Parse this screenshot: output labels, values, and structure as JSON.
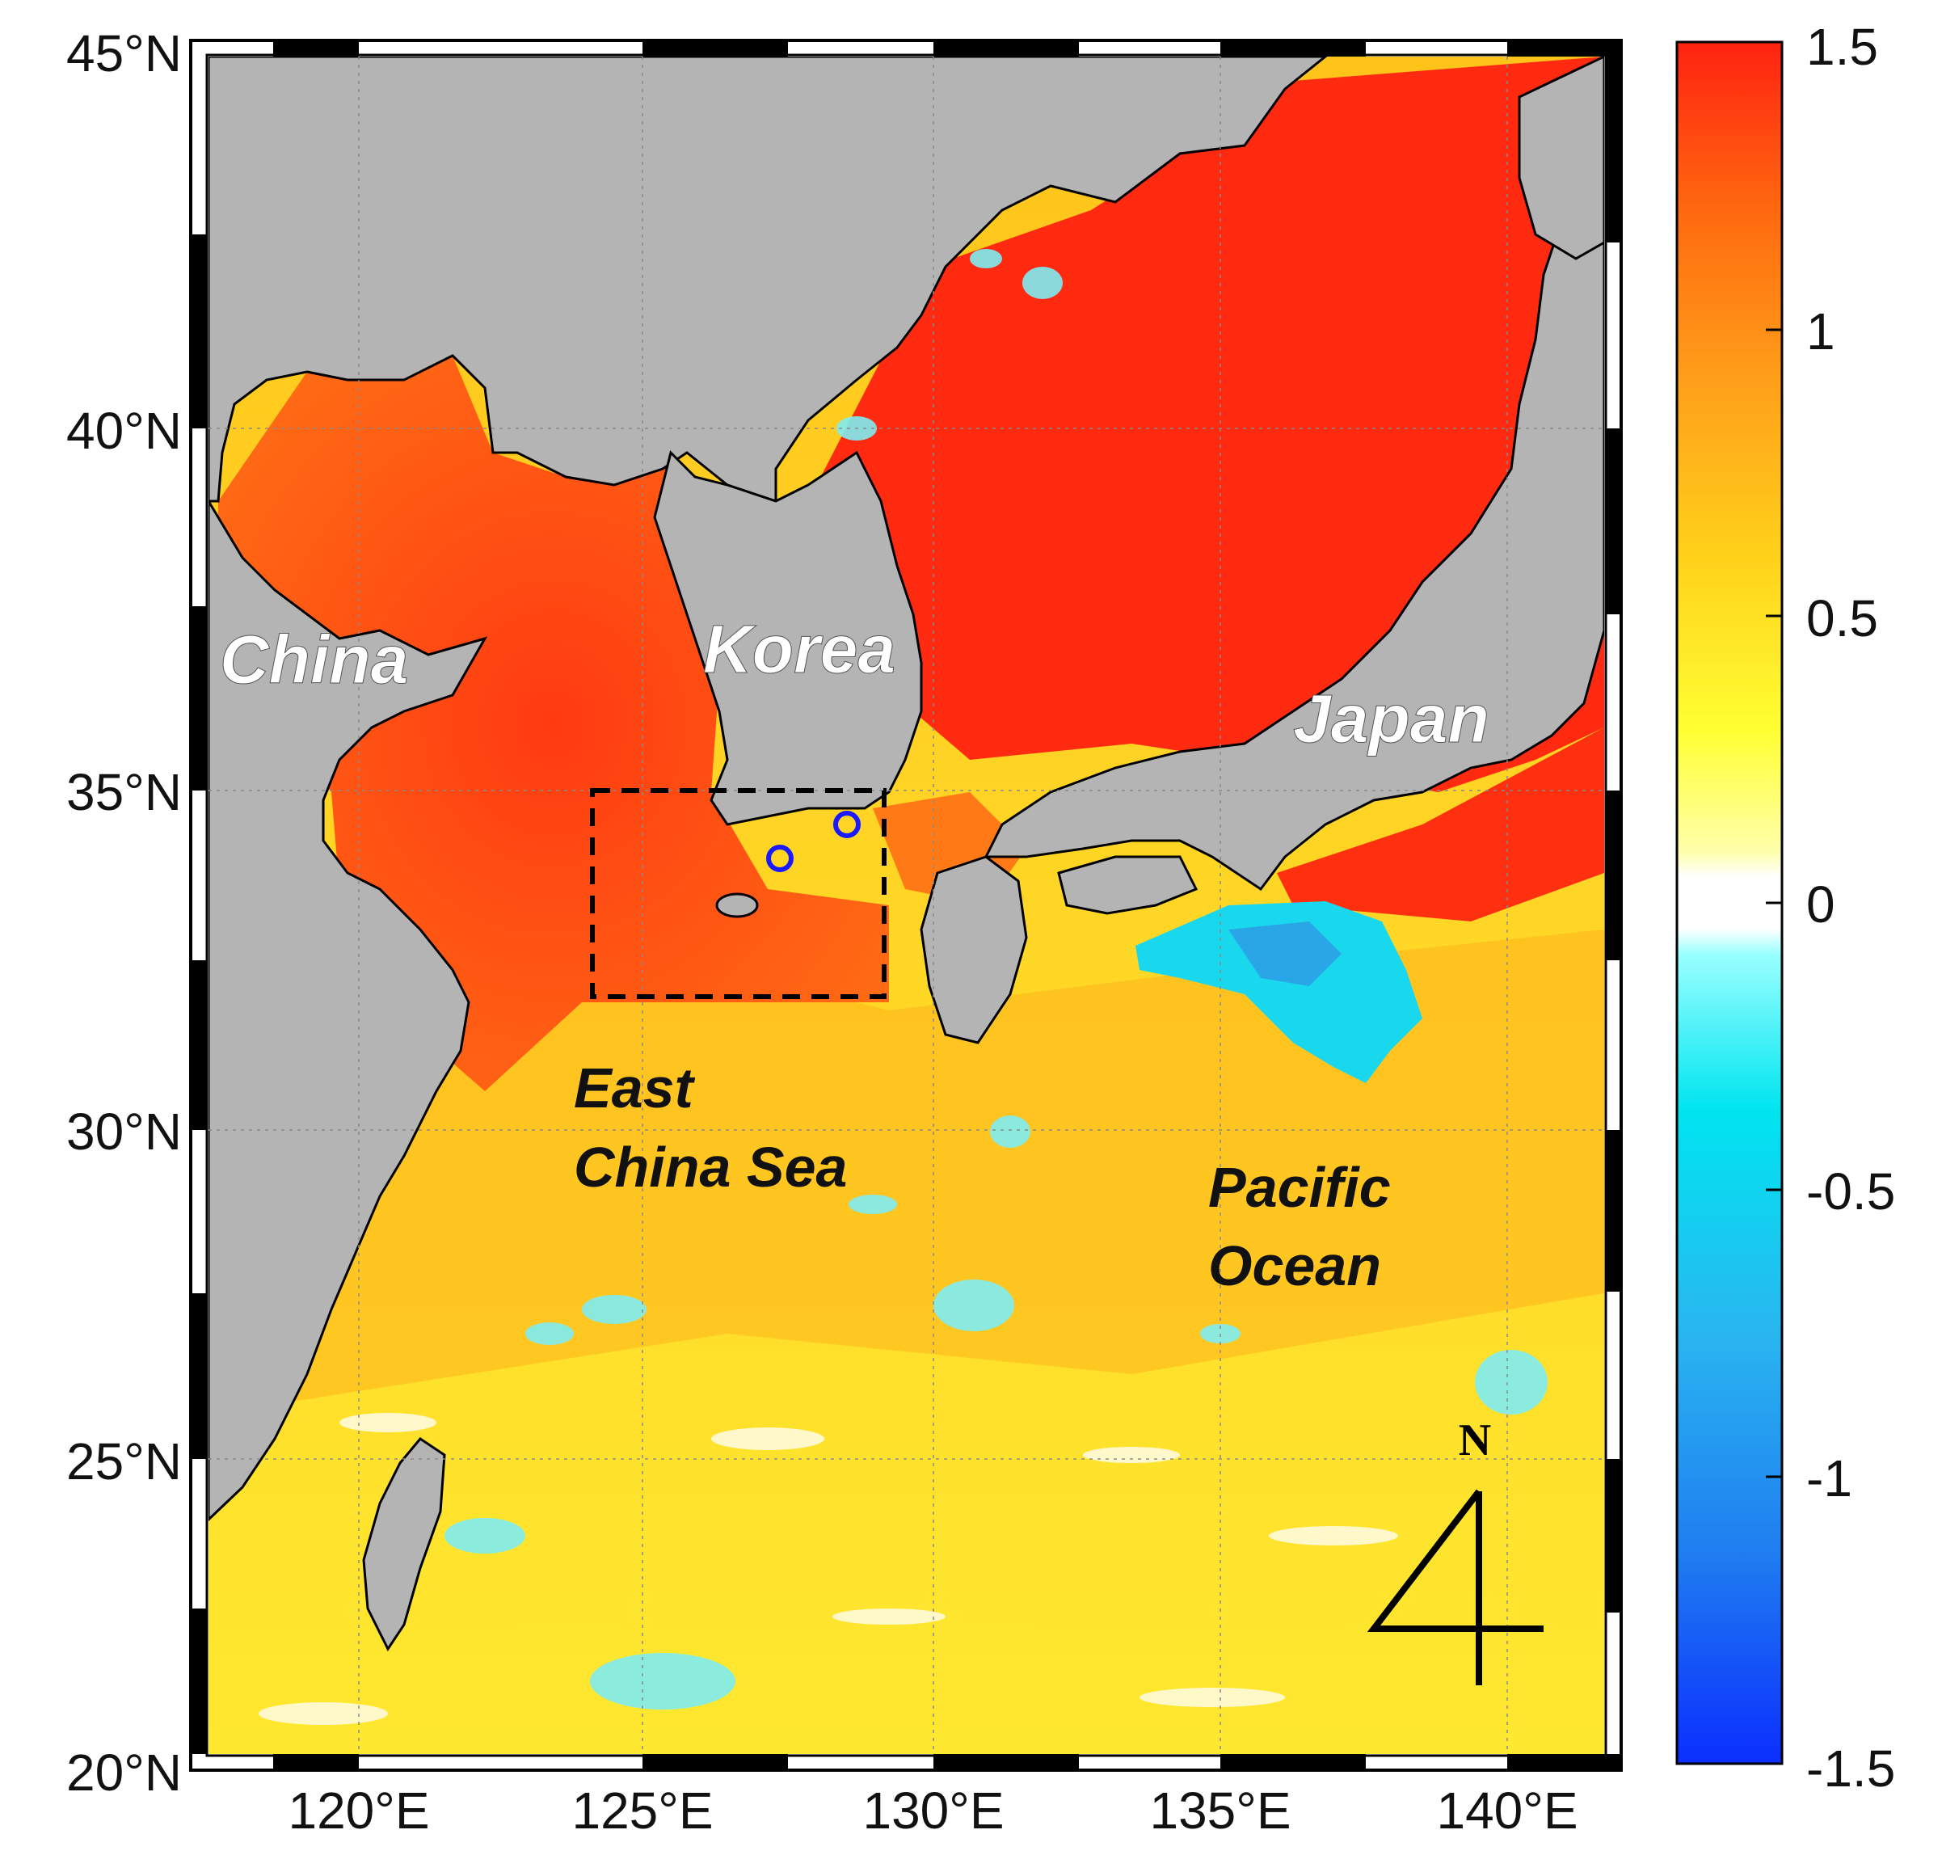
{
  "map": {
    "lat_labels": [
      "45°N",
      "40°N",
      "35°N",
      "30°N",
      "25°N",
      "20°N"
    ],
    "lon_labels": [
      "120°E",
      "125°E",
      "130°E",
      "135°E",
      "140°E"
    ],
    "places": {
      "china": "China",
      "korea": "Korea",
      "japan": "Japan",
      "east_china_sea_line1": "East",
      "east_china_sea_line2": "China Sea",
      "pacific_line1": "Pacific",
      "pacific_line2": "Ocean"
    },
    "north_arrow": "N",
    "study_box": {
      "lon_min": 124,
      "lon_max": 129,
      "lat_min": 32,
      "lat_max": 35
    },
    "stations": [
      {
        "lon": 127.3,
        "lat": 34.0
      },
      {
        "lon": 128.5,
        "lat": 34.5
      }
    ],
    "colors": {
      "land": "#b4b4b4",
      "frame": "#000000",
      "study_box": "#000000",
      "station_marker": "#1a1aff"
    }
  },
  "colorbar": {
    "ticks": [
      "1.5",
      "1",
      "0.5",
      "0",
      "-0.5",
      "-1",
      "-1.5"
    ],
    "range": [
      -1.5,
      1.5
    ],
    "gradient": [
      "#0b2eff",
      "#1f7cf0",
      "#29b6f0",
      "#00e5f0",
      "#99ffff",
      "#ffffff",
      "#ffff33",
      "#ffd21a",
      "#ffa11a",
      "#ff6a10",
      "#ff2210"
    ]
  }
}
